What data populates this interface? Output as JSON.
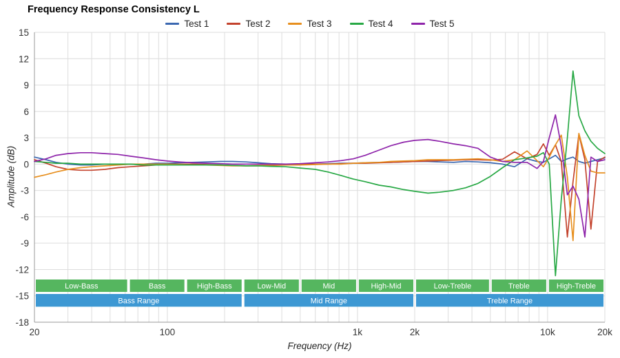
{
  "chart_data": {
    "type": "line",
    "title": "Frequency Response Consistency L",
    "xlabel": "Frequency (Hz)",
    "ylabel": "Amplitude (dB)",
    "x_scale": "log",
    "xlim": [
      20,
      20000
    ],
    "ylim": [
      -18,
      15
    ],
    "y_tick_step": 3,
    "grid": true,
    "legend_position": "top",
    "x": [
      20,
      23,
      26,
      30,
      35,
      40,
      47,
      55,
      64,
      75,
      87,
      100,
      115,
      135,
      160,
      190,
      220,
      260,
      300,
      350,
      420,
      500,
      600,
      700,
      820,
      950,
      1100,
      1300,
      1500,
      1750,
      2000,
      2350,
      2700,
      3200,
      3700,
      4300,
      5000,
      5800,
      6700,
      7800,
      8800,
      9500,
      10200,
      11000,
      11800,
      12700,
      13600,
      14600,
      15700,
      16900,
      18300,
      20000
    ],
    "series": [
      {
        "name": "Test 1",
        "color": "#3a67b0",
        "values": [
          0.8,
          0.5,
          0.2,
          0,
          -0.1,
          -0.1,
          0,
          0,
          0,
          0,
          0.1,
          0.1,
          0.15,
          0.2,
          0.25,
          0.3,
          0.3,
          0.25,
          0.15,
          0.05,
          0,
          0,
          0,
          0.05,
          0.1,
          0.1,
          0.15,
          0.2,
          0.2,
          0.25,
          0.3,
          0.3,
          0.25,
          0.2,
          0.3,
          0.25,
          0.15,
          0,
          -0.3,
          0.6,
          0.3,
          0.2,
          0.6,
          1.0,
          0.3,
          0.6,
          0.8,
          0.3,
          0.1,
          0.3,
          0.5,
          0.7
        ]
      },
      {
        "name": "Test 2",
        "color": "#c3422c",
        "values": [
          0.5,
          0.1,
          -0.3,
          -0.6,
          -0.7,
          -0.7,
          -0.6,
          -0.4,
          -0.3,
          -0.2,
          -0.1,
          0,
          0,
          0,
          -0.05,
          -0.1,
          -0.15,
          -0.2,
          -0.2,
          -0.15,
          -0.1,
          -0.05,
          0,
          0,
          0.05,
          0.1,
          0.1,
          0.15,
          0.2,
          0.25,
          0.3,
          0.35,
          0.4,
          0.45,
          0.5,
          0.5,
          0.45,
          0.55,
          1.4,
          0.6,
          1.1,
          2.3,
          1.0,
          2.2,
          0.3,
          -8.3,
          -2.0,
          3.4,
          0.5,
          -7.4,
          0.3,
          0.8
        ]
      },
      {
        "name": "Test 3",
        "color": "#e78f1e",
        "values": [
          -1.5,
          -1.2,
          -0.9,
          -0.6,
          -0.4,
          -0.3,
          -0.2,
          -0.1,
          0,
          0,
          0,
          0,
          -0.05,
          -0.1,
          -0.1,
          -0.15,
          -0.2,
          -0.2,
          -0.15,
          -0.1,
          -0.1,
          -0.1,
          -0.05,
          0,
          0,
          0.1,
          0.15,
          0.2,
          0.3,
          0.35,
          0.4,
          0.5,
          0.5,
          0.5,
          0.55,
          0.6,
          0.5,
          0.3,
          0.5,
          1.5,
          0.4,
          -0.3,
          0.8,
          2.2,
          3.3,
          -1.5,
          -8.7,
          3.5,
          1.0,
          -0.8,
          -1.0,
          -1.0
        ]
      },
      {
        "name": "Test 4",
        "color": "#27a844",
        "values": [
          0.3,
          0.2,
          0.1,
          0.1,
          0,
          0,
          0,
          0,
          0,
          -0.1,
          -0.1,
          -0.1,
          -0.1,
          -0.1,
          -0.1,
          -0.1,
          -0.15,
          -0.2,
          -0.2,
          -0.25,
          -0.3,
          -0.45,
          -0.6,
          -0.9,
          -1.3,
          -1.7,
          -2.0,
          -2.4,
          -2.6,
          -2.9,
          -3.1,
          -3.3,
          -3.2,
          -3.0,
          -2.7,
          -2.2,
          -1.4,
          -0.4,
          0.5,
          0.7,
          0.9,
          1.3,
          0.0,
          -12.7,
          -4.0,
          3.0,
          10.6,
          5.5,
          3.8,
          2.6,
          1.8,
          1.2
        ]
      },
      {
        "name": "Test 5",
        "color": "#8e24aa",
        "values": [
          0.3,
          0.6,
          1.0,
          1.2,
          1.3,
          1.3,
          1.2,
          1.1,
          0.9,
          0.7,
          0.5,
          0.35,
          0.25,
          0.15,
          0.1,
          0.05,
          0,
          0,
          0,
          0,
          0,
          0.05,
          0.15,
          0.25,
          0.4,
          0.6,
          1.0,
          1.6,
          2.1,
          2.5,
          2.7,
          2.8,
          2.6,
          2.3,
          2.1,
          1.8,
          0.8,
          0.3,
          0.2,
          0.2,
          -0.5,
          0.3,
          3.0,
          5.6,
          2.0,
          -3.5,
          -2.5,
          -4.0,
          -8.3,
          0.8,
          0.3,
          0.5
        ]
      }
    ]
  },
  "axes": {
    "y_ticks": [
      15,
      12,
      9,
      6,
      3,
      0,
      -3,
      -6,
      -9,
      -12,
      -15,
      -18
    ],
    "x_ticks": [
      {
        "value": 20,
        "label": "20"
      },
      {
        "value": 100,
        "label": "100"
      },
      {
        "value": 1000,
        "label": "1k"
      },
      {
        "value": 2000,
        "label": "2k"
      },
      {
        "value": 10000,
        "label": "10k"
      },
      {
        "value": 20000,
        "label": "20k"
      }
    ]
  },
  "bands": {
    "sub_color": "#55b65f",
    "main_color": "#3d98d3",
    "label_color": "#ffffff",
    "sub": [
      {
        "label": "Low-Bass",
        "from": 20,
        "to": 62.5
      },
      {
        "label": "Bass",
        "from": 62.5,
        "to": 125
      },
      {
        "label": "High-Bass",
        "from": 125,
        "to": 250
      },
      {
        "label": "Low-Mid",
        "from": 250,
        "to": 500
      },
      {
        "label": "Mid",
        "from": 500,
        "to": 1000
      },
      {
        "label": "High-Mid",
        "from": 1000,
        "to": 2000
      },
      {
        "label": "Low-Treble",
        "from": 2000,
        "to": 5000
      },
      {
        "label": "Treble",
        "from": 5000,
        "to": 10000
      },
      {
        "label": "High-Treble",
        "from": 10000,
        "to": 20000
      }
    ],
    "main": [
      {
        "label": "Bass Range",
        "from": 20,
        "to": 250
      },
      {
        "label": "Mid Range",
        "from": 250,
        "to": 2000
      },
      {
        "label": "Treble Range",
        "from": 2000,
        "to": 20000
      }
    ]
  }
}
